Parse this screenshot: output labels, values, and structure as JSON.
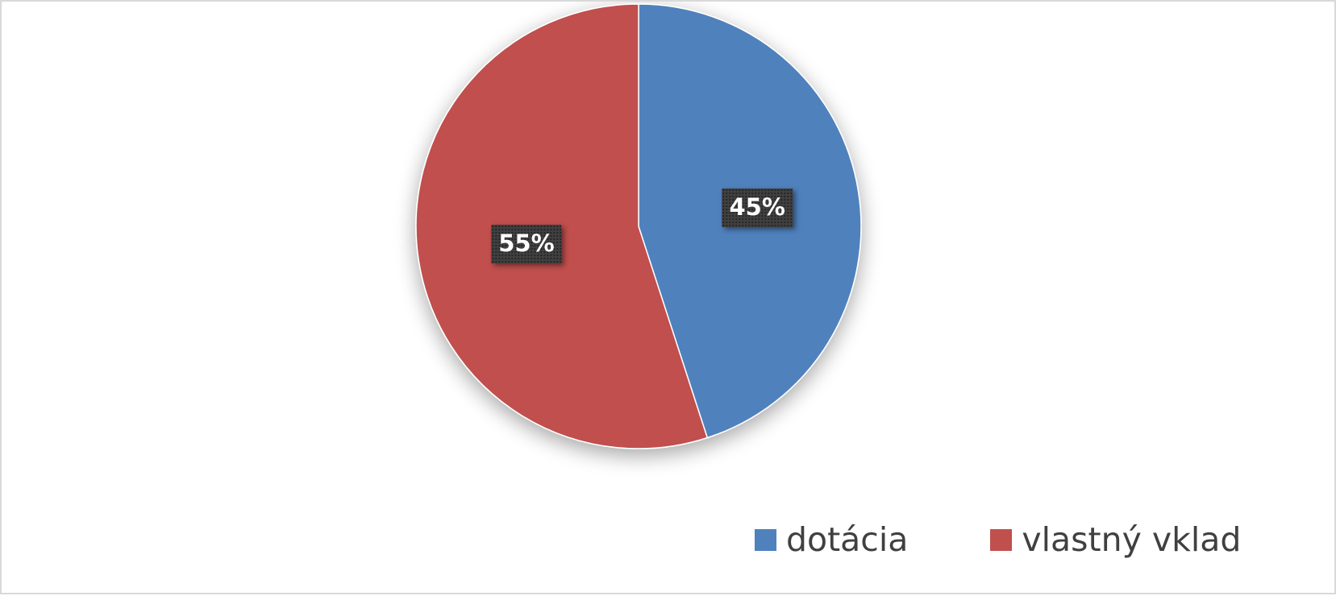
{
  "chart_data": {
    "type": "pie",
    "title": "",
    "categories": [
      "dotácia",
      "vlastný vklad"
    ],
    "values": [
      45,
      55
    ],
    "data_labels": [
      "45%",
      "55%"
    ],
    "colors": [
      "#4f81bd",
      "#c0504d"
    ],
    "start_angle": "12 o'clock",
    "direction": "clockwise",
    "legend_position": "bottom-right",
    "label_style": "white bold text on dark box"
  }
}
